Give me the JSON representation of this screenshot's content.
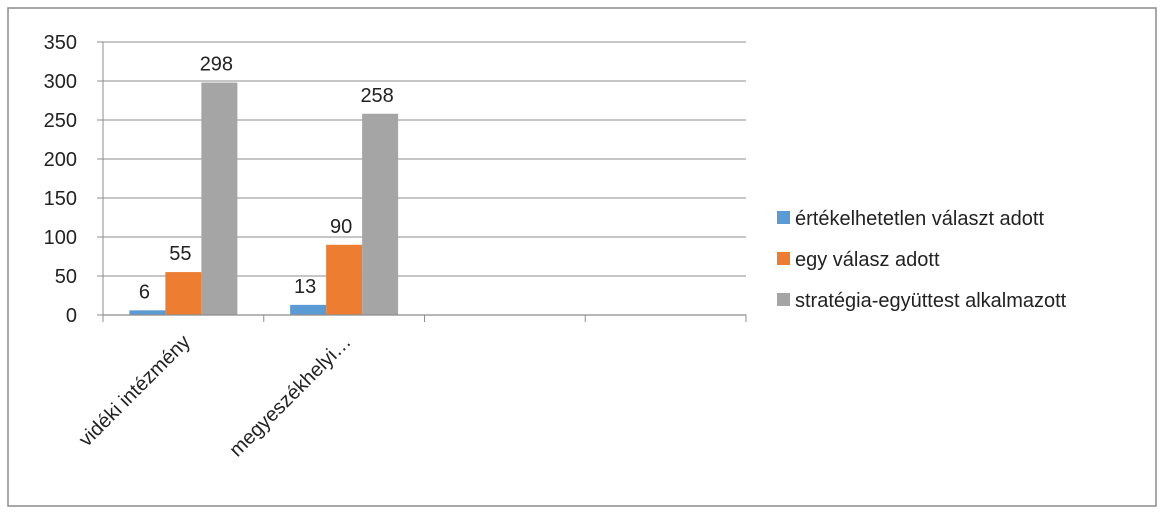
{
  "chart_data": {
    "type": "bar",
    "categories": [
      "vidéki intézmény",
      "megyeszékhelyi…",
      "",
      ""
    ],
    "series": [
      {
        "name": "értékelhetetlen választ adott",
        "values": [
          6,
          13,
          null,
          null
        ],
        "color": "#5B9BD5"
      },
      {
        "name": "egy válasz adott",
        "values": [
          55,
          90,
          null,
          null
        ],
        "color": "#ED7D31"
      },
      {
        "name": "stratégia-együttest alkalmazott",
        "values": [
          298,
          258,
          null,
          null
        ],
        "color": "#A5A5A5"
      }
    ],
    "ylim": [
      0,
      350
    ],
    "yticks": [
      0,
      50,
      100,
      150,
      200,
      250,
      300,
      350
    ],
    "grid": true,
    "legend": "right",
    "data_labels": true
  }
}
